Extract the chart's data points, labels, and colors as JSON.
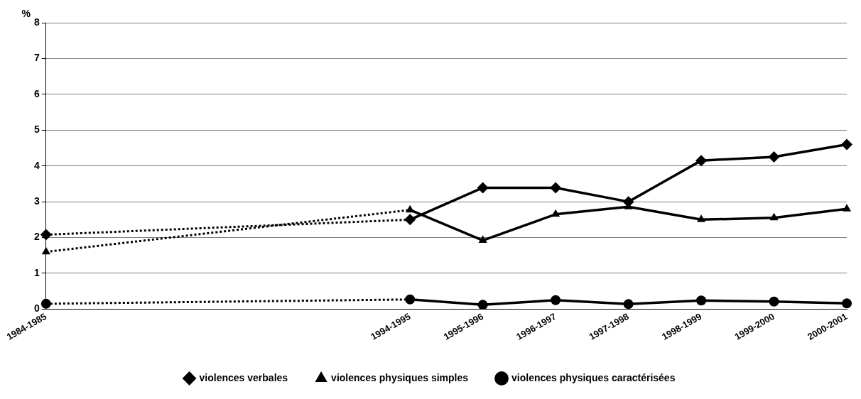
{
  "chart_data": {
    "type": "line",
    "ylabel": "%",
    "categories": [
      "1984-1985",
      null,
      null,
      null,
      null,
      "1994-1995",
      "1995-1996",
      "1996-1997",
      "1997-1998",
      "1998-1999",
      "1999-2000",
      "2000-2001"
    ],
    "series": [
      {
        "name": "violences verbales",
        "color": "#000000",
        "marker": "diamond",
        "values": [
          2.08,
          null,
          null,
          null,
          null,
          2.5,
          3.39,
          3.39,
          3.0,
          4.15,
          4.25,
          4.6
        ]
      },
      {
        "name": "violences physiques simples",
        "color": "#000000",
        "marker": "triangle",
        "values": [
          1.6,
          null,
          null,
          null,
          null,
          2.77,
          1.92,
          2.65,
          2.86,
          2.5,
          2.55,
          2.8
        ]
      },
      {
        "name": "violences physiques caractérisées",
        "color": "#000000",
        "marker": "circle",
        "values": [
          0.15,
          null,
          null,
          null,
          null,
          0.27,
          0.12,
          0.25,
          0.14,
          0.24,
          0.21,
          0.16
        ]
      }
    ],
    "ylim": [
      0,
      8
    ],
    "yticks": [
      0,
      1,
      2,
      3,
      4,
      5,
      6,
      7,
      8
    ],
    "grid": "y",
    "legend": "bottom",
    "line_style": "solid"
  }
}
